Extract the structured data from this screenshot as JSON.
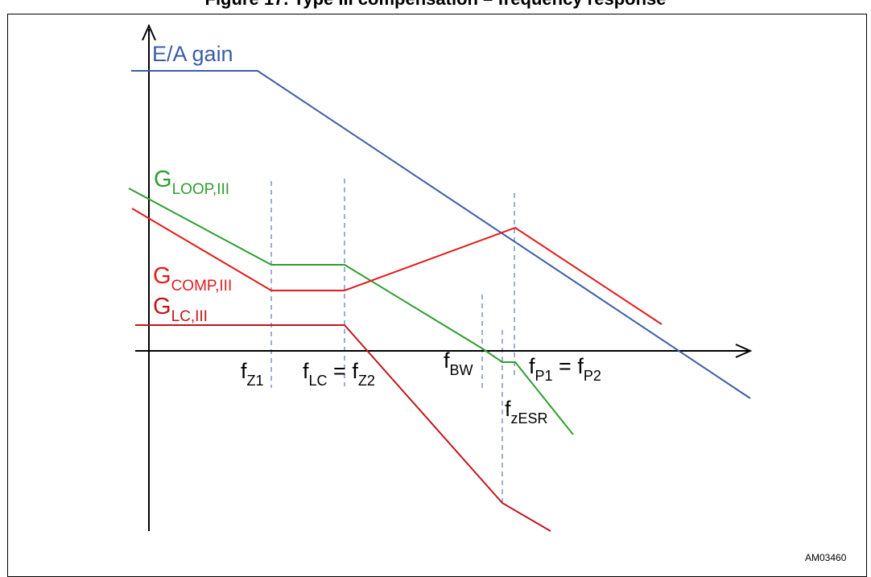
{
  "title": "Figure 17. Type III compensation – frequency response",
  "figure_id": "AM03460",
  "colors": {
    "ea_gain": "#3a5da9",
    "loop": "#2e9e2e",
    "comp": "#e21c1c",
    "lc": "#c0161b",
    "guides": "#3a5da9",
    "axes": "#000000"
  },
  "curves": {
    "ea": {
      "base": "E/A gain",
      "sub": ""
    },
    "loop": {
      "base": "G",
      "sub": "LOOP,III"
    },
    "comp": {
      "base": "G",
      "sub": "COMP,III"
    },
    "lc": {
      "base": "G",
      "sub": "LC,III"
    }
  },
  "frequencies": {
    "fz1": {
      "base": "f",
      "sub": "Z1"
    },
    "flc": {
      "base": "f",
      "sub": "LC",
      "eq": " = ",
      "base2": "f",
      "sub2": "Z2"
    },
    "fbw": {
      "base": "f",
      "sub": "BW"
    },
    "fp": {
      "base": "f",
      "sub": "P1",
      "eq": " = ",
      "base2": "f",
      "sub2": "P2"
    },
    "fzesr": {
      "base": "f",
      "sub": "zESR"
    }
  }
}
